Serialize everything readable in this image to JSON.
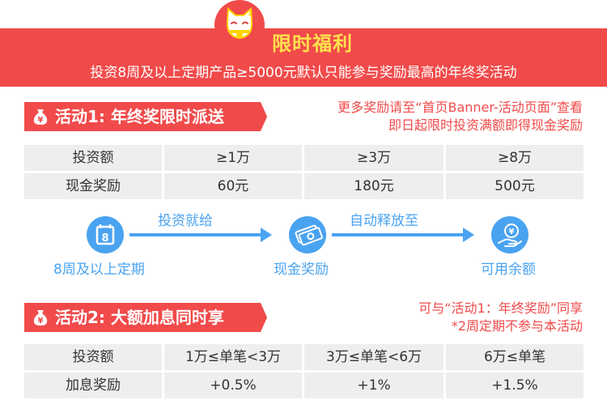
{
  "banner": {
    "title": "限时福利",
    "subtitle": "投资8周及以上定期产品≥5000元默认只能参与奖励最高的年终奖活动"
  },
  "activity1": {
    "tag": "活动1: 年终奖限时派送",
    "note_lines": [
      "更多奖励请至“首页Banner-活动页面”查看",
      "即日起限时投资满额即得现金奖励"
    ],
    "table": {
      "rows": [
        [
          "投资额",
          "≥1万",
          "≥3万",
          "≥8万"
        ],
        [
          "现金奖励",
          "60元",
          "180元",
          "500元"
        ]
      ]
    },
    "flow": {
      "step1_label": "8周及以上定期",
      "arrow1_label": "投资就给",
      "step2_label": "现金奖励",
      "arrow2_label": "自动释放至",
      "step3_label": "可用余额",
      "calendar_day": "8"
    }
  },
  "activity2": {
    "tag": "活动2: 大额加息同时享",
    "note_lines": [
      "可与“活动1：年终奖励”同享",
      "*2周定期不参与本活动"
    ],
    "table": {
      "rows": [
        [
          "投资额",
          "1万≤单笔<3万",
          "3万≤单笔<6万",
          "6万≤单笔"
        ],
        [
          "加息奖励",
          "+0.5%",
          "+1%",
          "+1.5%"
        ]
      ]
    }
  },
  "colors": {
    "accent_red": "#f14a4a",
    "title_yellow": "#ffe14d",
    "flow_blue": "#4aa3f0",
    "table_gray": "#eeeeee"
  },
  "icons": [
    "lucky-cat-icon",
    "money-bag-icon",
    "calendar-icon",
    "cash-icon",
    "yuan-hand-icon"
  ]
}
